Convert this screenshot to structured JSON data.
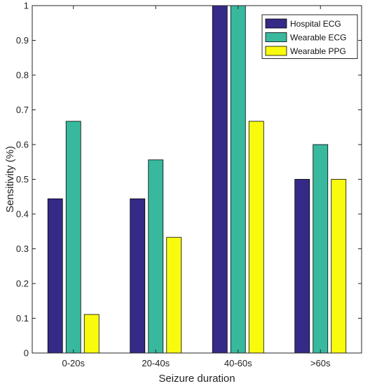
{
  "chart_data": {
    "type": "bar",
    "title": "",
    "xlabel": "Seizure duration",
    "ylabel": "Sensitivity (%)",
    "categories": [
      "0-20s",
      "20-40s",
      "40-60s",
      ">60s"
    ],
    "ylim": [
      0,
      1
    ],
    "yticks": [
      "0",
      "0.1",
      "0.2",
      "0.3",
      "0.4",
      "0.5",
      "0.6",
      "0.7",
      "0.8",
      "0.9",
      "1"
    ],
    "grid": false,
    "legend_position": "top-right",
    "series": [
      {
        "name": "Hospital ECG",
        "color": "#352a87",
        "values": [
          0.444,
          0.444,
          1.0,
          0.5
        ]
      },
      {
        "name": "Wearable ECG",
        "color": "#38b99e",
        "values": [
          0.667,
          0.556,
          1.0,
          0.6
        ]
      },
      {
        "name": "Wearable PPG",
        "color": "#f9fb0e",
        "values": [
          0.111,
          0.333,
          0.667,
          0.5
        ]
      }
    ]
  }
}
